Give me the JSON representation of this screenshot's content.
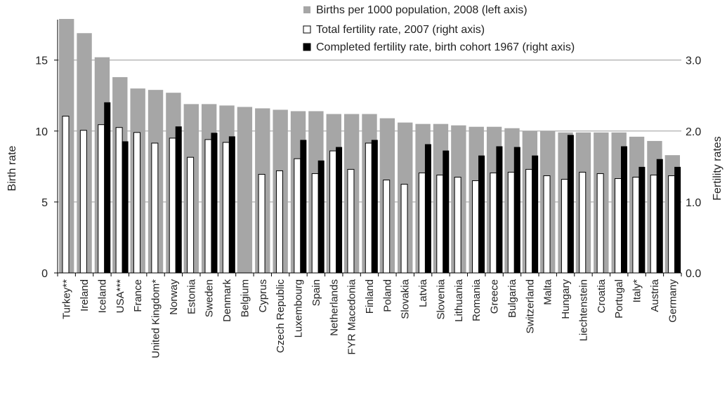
{
  "chart_data": {
    "type": "bar",
    "categories": [
      "Turkey**",
      "Ireland",
      "Iceland",
      "USA***",
      "France",
      "United Kingdom*",
      "Norway",
      "Estonia",
      "Sweden",
      "Denmark",
      "Belgium",
      "Cyprus",
      "Czech Republic",
      "Luxembourg",
      "Spain",
      "Netherlands",
      "FYR Macedonia",
      "Finland",
      "Poland",
      "Slovakia",
      "Latvia",
      "Slovenia",
      "Lithuania",
      "Romania",
      "Greece",
      "Bulgaria",
      "Switzerland",
      "Malta",
      "Hungary",
      "Liechtenstein",
      "Croatia",
      "Portugal",
      "Italy*",
      "Austria",
      "Germany"
    ],
    "series": [
      {
        "name": "Births per 1000 population, 2008 (left axis)",
        "axis": "left",
        "color": "#a6a6a6",
        "values": [
          17.9,
          16.9,
          15.2,
          13.8,
          13.0,
          12.9,
          12.7,
          11.9,
          11.9,
          11.8,
          11.7,
          11.6,
          11.5,
          11.4,
          11.4,
          11.2,
          11.2,
          11.2,
          10.9,
          10.6,
          10.5,
          10.5,
          10.4,
          10.3,
          10.3,
          10.2,
          10.0,
          10.0,
          9.9,
          9.9,
          9.9,
          9.9,
          9.6,
          9.3,
          8.3
        ]
      },
      {
        "name": "Total fertility rate, 2007 (right axis)",
        "axis": "right",
        "color": "#ffffff",
        "values": [
          2.21,
          2.01,
          2.09,
          2.05,
          1.98,
          1.83,
          1.9,
          1.63,
          1.88,
          1.84,
          null,
          1.39,
          1.44,
          1.61,
          1.4,
          1.72,
          1.46,
          1.83,
          1.31,
          1.25,
          1.41,
          1.38,
          1.35,
          1.3,
          1.41,
          1.42,
          1.46,
          1.37,
          1.32,
          1.42,
          1.4,
          1.33,
          1.35,
          1.38,
          1.37
        ]
      },
      {
        "name": "Completed fertility rate, birth cohort 1967 (right axis)",
        "axis": "right",
        "color": "#000000",
        "values": [
          null,
          null,
          2.4,
          1.85,
          null,
          null,
          2.06,
          null,
          1.97,
          1.92,
          null,
          null,
          null,
          1.87,
          1.58,
          1.77,
          null,
          1.87,
          null,
          null,
          1.81,
          1.72,
          null,
          1.65,
          1.78,
          1.77,
          1.65,
          null,
          1.94,
          null,
          null,
          1.78,
          1.49,
          1.6,
          1.49
        ]
      }
    ],
    "ylabel": "Birth rate",
    "ylabel_right": "Fertility rates",
    "ylim": [
      0,
      18
    ],
    "ylim_right": [
      0,
      3.6
    ],
    "yticks": [
      "0",
      "5",
      "10",
      "15"
    ],
    "yticks_right": [
      "0.0",
      "1.0",
      "2.0",
      "3.0"
    ],
    "legend_position": "top-right",
    "grid": "horizontal"
  }
}
